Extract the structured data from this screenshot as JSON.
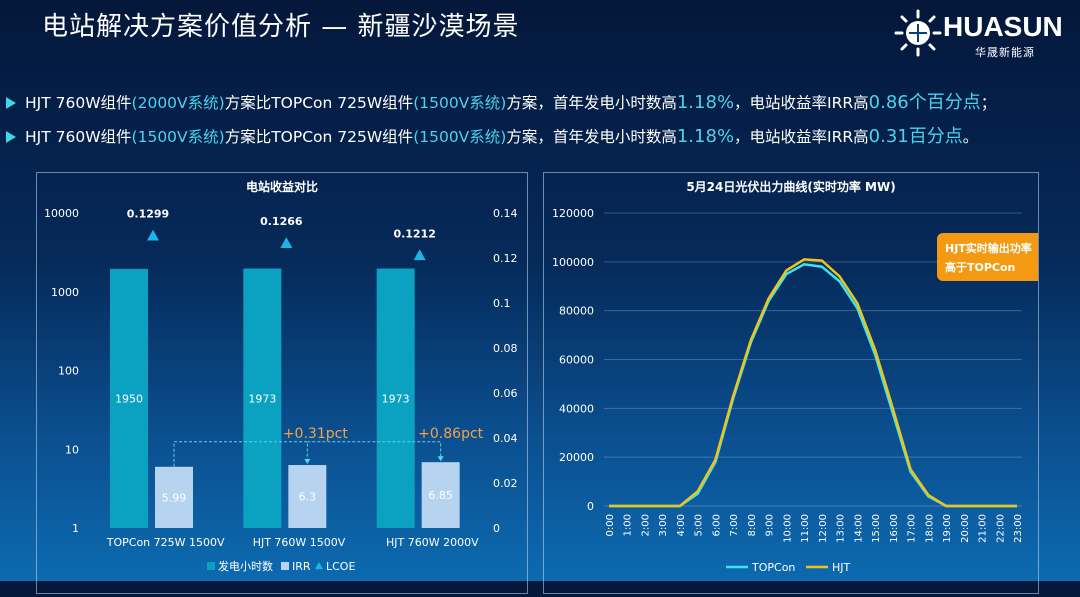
{
  "header": {
    "title": "电站解决方案价值分析 — 新疆沙漠场景",
    "logo_text": "HUASUN",
    "logo_sub": "华晟新能源"
  },
  "bullets": [
    {
      "p1": "HJT 760W组件",
      "p2": "(2000V系统)",
      "p3": "方案比TOPCon 725W组件",
      "p4": "(1500V系统)",
      "p5": "方案，首年发电小时数高",
      "p6": "1.18%",
      "p7": "，电站收益率IRR高",
      "p8": "0.86个百分点",
      "p9": "；"
    },
    {
      "p1": "HJT 760W组件",
      "p2": "(1500V系统)",
      "p3": "方案比TOPCon 725W组件",
      "p4": "(1500V系统)",
      "p5": "方案，首年发电小时数高",
      "p6": "1.18%",
      "p7": "，电站收益率IRR高",
      "p8": "0.31百分点",
      "p9": "。"
    }
  ],
  "colors": {
    "bar_hours": "#0aa2c0",
    "bar_irr": "#b6d4ef",
    "lcoe": "#1fb4e4",
    "topcon_line": "#38e4f5",
    "hjt_line": "#f0c418",
    "pct_text": "#f5a24a",
    "callout_bg": "#f39a12"
  },
  "chart_data": [
    {
      "type": "bar",
      "title": "电站收益对比",
      "categories": [
        "TOPCon  725W  1500V",
        "HJT  760W  1500V",
        "HJT  760W  2000V"
      ],
      "left_axis": {
        "scale": "log",
        "ticks": [
          "1",
          "10",
          "100",
          "1000",
          "10000"
        ]
      },
      "right_axis": {
        "ylim": [
          0,
          0.14
        ],
        "ticks": [
          "0",
          "0.02",
          "0.04",
          "0.06",
          "0.08",
          "0.1",
          "0.12",
          "0.14"
        ]
      },
      "series": [
        {
          "name": "发电小时数",
          "axis": "left",
          "values": [
            1950,
            1973,
            1973
          ],
          "labels": [
            "1950",
            "1973",
            "1973"
          ]
        },
        {
          "name": "IRR",
          "axis": "left",
          "values": [
            5.99,
            6.3,
            6.85
          ],
          "labels": [
            "5.99",
            "6.3",
            "6.85"
          ]
        },
        {
          "name": "LCOE",
          "axis": "right",
          "marker": "triangle",
          "values": [
            0.1299,
            0.1266,
            0.1212
          ],
          "labels": [
            "0.1299",
            "0.1266",
            "0.1212"
          ]
        }
      ],
      "annotations": [
        "+0.31pct",
        "+0.86pct"
      ],
      "legend": [
        "发电小时数",
        "IRR",
        "LCOE"
      ],
      "legend_position": "bottom"
    },
    {
      "type": "line",
      "title": "5月24日光伏出力曲线(实时功率  MW)",
      "x": [
        "0:00",
        "1:00",
        "2:00",
        "3:00",
        "4:00",
        "5:00",
        "6:00",
        "7:00",
        "8:00",
        "9:00",
        "10:00",
        "11:00",
        "12:00",
        "13:00",
        "14:00",
        "15:00",
        "16:00",
        "17:00",
        "18:00",
        "19:00",
        "20:00",
        "21:00",
        "22:00",
        "23:00"
      ],
      "ylim": [
        0,
        120000
      ],
      "yticks": [
        "0",
        "20000",
        "40000",
        "60000",
        "80000",
        "100000",
        "120000"
      ],
      "series": [
        {
          "name": "TOPCon",
          "values": [
            0,
            0,
            0,
            0,
            0,
            5000,
            18000,
            44000,
            67000,
            84000,
            95000,
            99000,
            98000,
            92000,
            81000,
            62000,
            38000,
            14000,
            4000,
            0,
            0,
            0,
            0,
            0
          ]
        },
        {
          "name": "HJT",
          "values": [
            0,
            0,
            0,
            0,
            0,
            6000,
            19000,
            45000,
            68000,
            85000,
            96500,
            101000,
            100500,
            94000,
            83000,
            64000,
            40000,
            15000,
            4500,
            0,
            0,
            0,
            0,
            0
          ]
        }
      ],
      "callout": [
        "HJT实时输出功率",
        "高于TOPCon"
      ],
      "legend_position": "bottom",
      "grid": true
    }
  ]
}
